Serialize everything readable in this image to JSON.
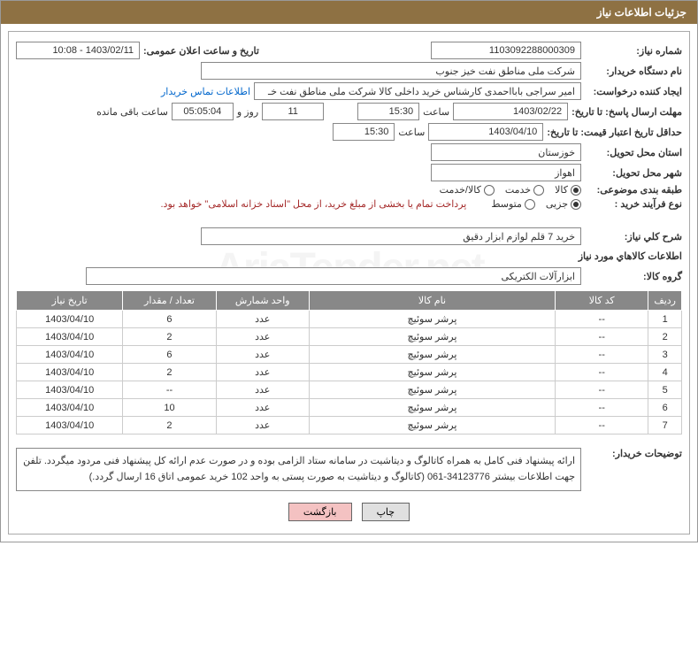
{
  "header": {
    "title": "جزئیات اطلاعات نیاز"
  },
  "form": {
    "request_number_label": "شماره نیاز:",
    "request_number": "1103092288000309",
    "announce_datetime_label": "تاریخ و ساعت اعلان عمومی:",
    "announce_datetime": "1403/02/11 - 10:08",
    "buyer_org_label": "نام دستگاه خریدار:",
    "buyer_org": "شرکت ملی مناطق نفت خیز جنوب",
    "creator_label": "ایجاد کننده درخواست:",
    "creator": "امیر  سراجی بابااحمدی  کارشناس خرید داخلی کالا شرکت ملی مناطق نفت خـ",
    "contact_link": "اطلاعات تماس خریدار",
    "deadline_label": "مهلت ارسال پاسخ: تا تاریخ:",
    "deadline_date": "1403/02/22",
    "time_label": "ساعت",
    "deadline_time": "15:30",
    "days_value": "11",
    "days_and": "روز و",
    "remaining_time": "05:05:04",
    "remaining_label": "ساعت باقی مانده",
    "min_validity_label": "حداقل تاریخ اعتبار قیمت: تا تاریخ:",
    "min_validity_date": "1403/04/10",
    "min_validity_time": "15:30",
    "delivery_province_label": "استان محل تحویل:",
    "delivery_province": "خوزستان",
    "delivery_city_label": "شهر محل تحویل:",
    "delivery_city": "اهواز",
    "category_label": "طبقه بندی موضوعی:",
    "category_options": {
      "goods": "کالا",
      "service": "خدمت",
      "goods_service": "کالا/خدمت"
    },
    "process_label": "نوع فرآیند خرید :",
    "process_options": {
      "partial": "جزیی",
      "medium": "متوسط"
    },
    "process_note": "پرداخت تمام یا بخشی از مبلغ خرید، از محل \"اسناد خزانه اسلامی\" خواهد بود.",
    "general_desc_label": "شرح کلي نیاز:",
    "general_desc": "خرید 7 قلم لوازم ابزار دقیق",
    "goods_info_label": "اطلاعات کالاهاي مورد نیاز",
    "goods_group_label": "گروه کالا:",
    "goods_group": "ابزارآلات الکتریکی"
  },
  "table": {
    "columns": [
      "ردیف",
      "کد کالا",
      "نام کالا",
      "واحد شمارش",
      "تعداد / مقدار",
      "تاریخ نیاز"
    ],
    "rows": [
      [
        "1",
        "--",
        "پرشر سوئیچ",
        "عدد",
        "6",
        "1403/04/10"
      ],
      [
        "2",
        "--",
        "پرشر سوئیچ",
        "عدد",
        "2",
        "1403/04/10"
      ],
      [
        "3",
        "--",
        "پرشر سوئیچ",
        "عدد",
        "6",
        "1403/04/10"
      ],
      [
        "4",
        "--",
        "پرشر سوئیچ",
        "عدد",
        "2",
        "1403/04/10"
      ],
      [
        "5",
        "--",
        "پرشر سوئیچ",
        "عدد",
        "--",
        "1403/04/10"
      ],
      [
        "6",
        "--",
        "پرشر سوئیچ",
        "عدد",
        "10",
        "1403/04/10"
      ],
      [
        "7",
        "--",
        "پرشر سوئیچ",
        "عدد",
        "2",
        "1403/04/10"
      ]
    ],
    "col_widths": [
      "5%",
      "14%",
      "37%",
      "14%",
      "14%",
      "16%"
    ]
  },
  "buyer_desc_label": "توضیحات خریدار:",
  "buyer_desc": "ارائه پیشنهاد فنی کامل به همراه کاتالوگ و دیتاشیت در سامانه ستاد الزامی بوده و در صورت عدم ارائه کل پیشنهاد فنی مردود میگردد. تلفن جهت اطلاعات بیشتر 34123776-061  (کاتالوگ و دیتاشیت به صورت پستی به واحد 102 خرید عمومی اتاق 16 ارسال گردد.)",
  "buttons": {
    "print": "چاپ",
    "back": "بازگشت"
  },
  "watermark": "AriaTender.net",
  "colors": {
    "header_bg": "#8e7143",
    "header_fg": "#ffffff",
    "border": "#888888",
    "th_bg": "#888888",
    "link": "#0066cc",
    "note": "#a52a2a"
  }
}
